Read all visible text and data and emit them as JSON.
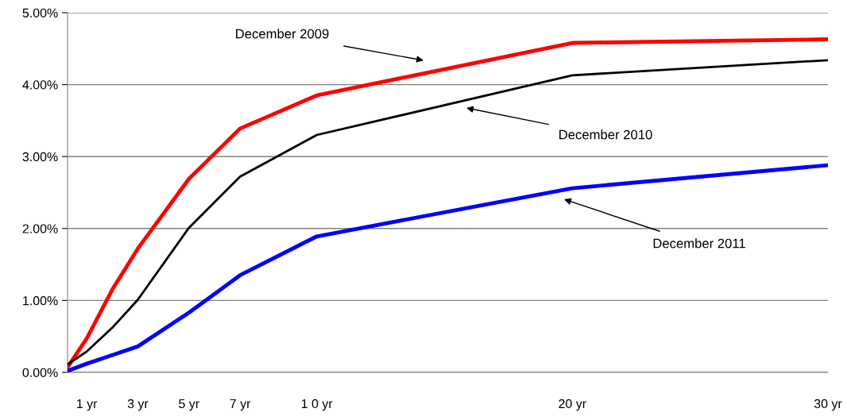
{
  "chart_data": {
    "type": "line",
    "x": [
      0.25,
      1,
      2,
      3,
      5,
      7,
      10,
      20,
      30
    ],
    "series": [
      {
        "color": "#ff0000",
        "values": [
          0.07,
          0.47,
          1.15,
          1.72,
          2.69,
          3.39,
          3.85,
          4.58,
          4.63
        ]
      },
      {
        "color": "#000000",
        "values": [
          0.11,
          0.29,
          0.62,
          1.01,
          2.01,
          2.72,
          3.3,
          4.13,
          4.34
        ]
      },
      {
        "color": "#0000ff",
        "values": [
          0.02,
          0.12,
          0.24,
          0.36,
          0.83,
          1.35,
          1.89,
          2.56,
          2.88
        ]
      }
    ],
    "xlim": [
      0.25,
      30
    ],
    "xticks": [
      {
        "value": 1,
        "label": "1 yr"
      },
      {
        "value": 3,
        "label": "3 yr"
      },
      {
        "value": 5,
        "label": "5 yr"
      },
      {
        "value": 7,
        "label": "7 yr"
      },
      {
        "value": 10,
        "label": "1 0 yr"
      },
      {
        "value": 20,
        "label": "20 yr"
      },
      {
        "value": 30,
        "label": "30 yr"
      }
    ],
    "ylim": [
      0,
      5
    ],
    "yticks": [
      {
        "value": 0,
        "label": "0.00%"
      },
      {
        "value": 1,
        "label": "1.00%"
      },
      {
        "value": 2,
        "label": "2.00%"
      },
      {
        "value": 3,
        "label": "3.00%"
      },
      {
        "value": 4,
        "label": "4.00%"
      },
      {
        "value": 5,
        "label": "5.00%"
      }
    ],
    "grid": "y",
    "marker": "none",
    "line_style": "solid",
    "annotations": [
      "December 2009",
      "December 2010",
      "December 2011"
    ]
  }
}
